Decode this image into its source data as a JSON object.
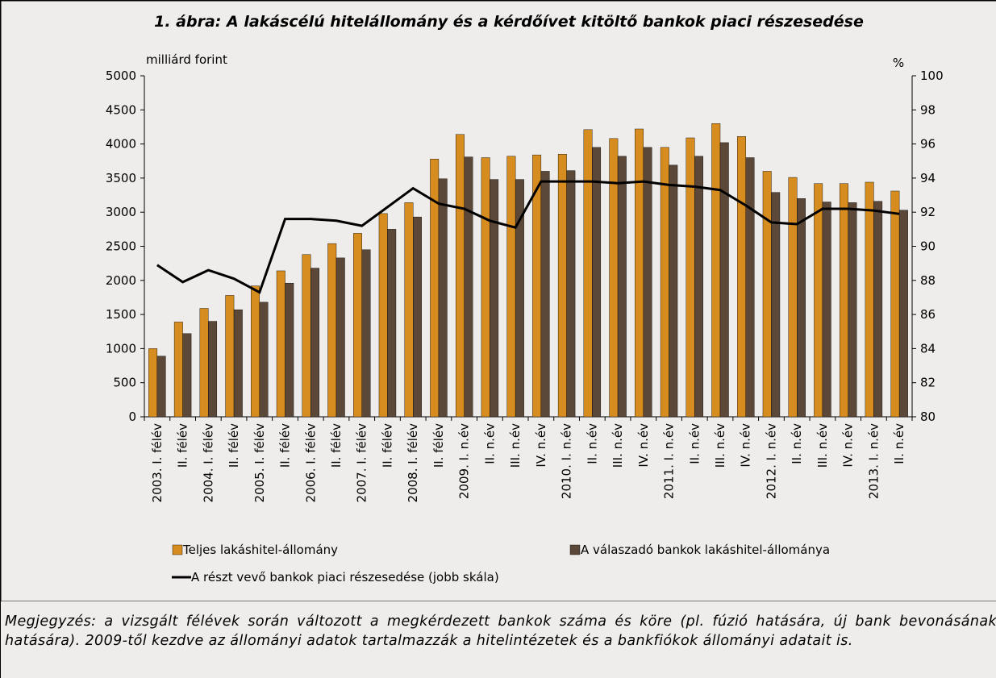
{
  "chart_data": {
    "type": "bar",
    "title": "1.  ábra: A lakáscélú hitelállomány és a kérdőívet kitöltő bankok piaci részesedése",
    "y_label": "milliárd forint",
    "y2_label": "%",
    "categories": [
      "2003. I. félév",
      "II. félév",
      "2004. I. félév",
      "II. félév",
      "2005. I. félév",
      "II. félév",
      "2006. I. félév",
      "II. félév",
      "2007. I. félév",
      "II. félév",
      "2008. I. félév",
      "II. félév",
      "2009. I. n.év",
      "II. n.év",
      "III. n.év",
      "IV. n.év",
      "2010. I. n.év",
      "II. n.év",
      "III. n.év",
      "IV. n.év",
      "2011. I. n.év",
      "II. n.év",
      "III. n.év",
      "IV. n.év",
      "2012. I. n.év",
      "II. n.év",
      "III. n.év",
      "IV. n.év",
      "2013. I. n.év",
      "II. n.év"
    ],
    "series": [
      {
        "name": "Teljes lakáshitel-állomány",
        "type": "bar",
        "color": "#d68c1e",
        "values": [
          1000,
          1390,
          1590,
          1780,
          1920,
          2140,
          2380,
          2540,
          2690,
          2980,
          3140,
          3780,
          4140,
          3800,
          3820,
          3840,
          3850,
          4210,
          4080,
          4220,
          3950,
          4090,
          4300,
          4110,
          3600,
          3510,
          3420,
          3420,
          3440,
          3310
        ]
      },
      {
        "name": "A válaszadó bankok lakáshitel-állománya",
        "type": "bar",
        "color": "#5c4838",
        "values": [
          890,
          1220,
          1400,
          1570,
          1680,
          1960,
          2180,
          2330,
          2450,
          2750,
          2930,
          3490,
          3810,
          3480,
          3480,
          3600,
          3610,
          3950,
          3820,
          3950,
          3690,
          3820,
          4020,
          3800,
          3290,
          3200,
          3150,
          3140,
          3160,
          3030
        ]
      },
      {
        "name": "A részt vevő bankok piaci részesedése (jobb skála)",
        "type": "line",
        "axis": "y2",
        "color": "#000000",
        "values": [
          88.9,
          87.9,
          88.6,
          88.1,
          87.3,
          91.6,
          91.6,
          91.5,
          91.2,
          92.3,
          93.4,
          92.5,
          92.2,
          91.5,
          91.1,
          93.8,
          93.8,
          93.8,
          93.7,
          93.8,
          93.6,
          93.5,
          93.3,
          92.4,
          91.4,
          91.3,
          92.2,
          92.2,
          92.1,
          91.9
        ]
      }
    ],
    "ylim": [
      0,
      5000
    ],
    "yticks": [
      0,
      500,
      1000,
      1500,
      2000,
      2500,
      3000,
      3500,
      4000,
      4500,
      5000
    ],
    "y2lim": [
      80,
      100
    ],
    "y2ticks": [
      80,
      82,
      84,
      86,
      88,
      90,
      92,
      94,
      96,
      98,
      100
    ]
  },
  "note": "Megjegyzés: a vizsgált félévek során változott a megkérdezett bankok száma és köre (pl. fúzió hatására, új bank bevonásának hatására). 2009-től kezdve az állományi adatok tartalmazzák a hitelintézetek és a bankfiókok állományi adatait is."
}
